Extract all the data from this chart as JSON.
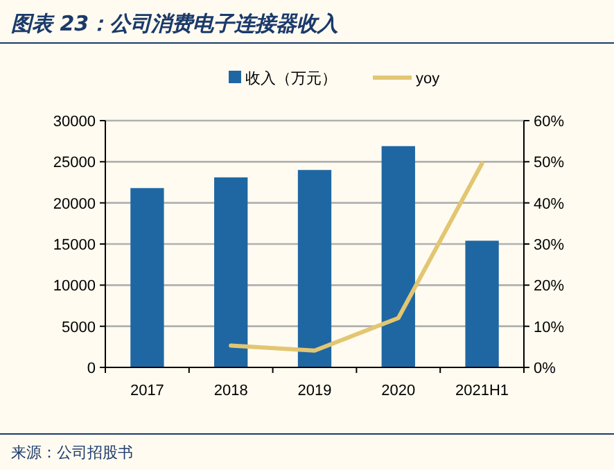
{
  "chart_data": {
    "type": "bar",
    "title": "图表 23：公司消费电子连接器收入",
    "categories": [
      "2017",
      "2018",
      "2019",
      "2020",
      "2021H1"
    ],
    "series": [
      {
        "name": "收入（万元）",
        "color": "#1f67a3",
        "values": [
          21800,
          23100,
          24000,
          26900,
          15400
        ]
      },
      {
        "name": "yoy",
        "type": "line",
        "axis": "y2",
        "color": "#e2c672",
        "values": [
          null,
          5.3,
          4.1,
          12.0,
          49.6
        ]
      }
    ],
    "ylim": [
      0,
      30000
    ],
    "yticks": [
      0,
      5000,
      10000,
      15000,
      20000,
      25000,
      30000
    ],
    "y2lim": [
      0,
      60
    ],
    "y2ticks": [
      {
        "value": 0,
        "label": "0%"
      },
      {
        "value": 10,
        "label": "10%"
      },
      {
        "value": 20,
        "label": "20%"
      },
      {
        "value": 30,
        "label": "30%"
      },
      {
        "value": 40,
        "label": "40%"
      },
      {
        "value": 50,
        "label": "50%"
      },
      {
        "value": 60,
        "label": "60%"
      }
    ],
    "grid": "y",
    "legend": "top",
    "annotations": [
      "来源：公司招股书"
    ]
  }
}
